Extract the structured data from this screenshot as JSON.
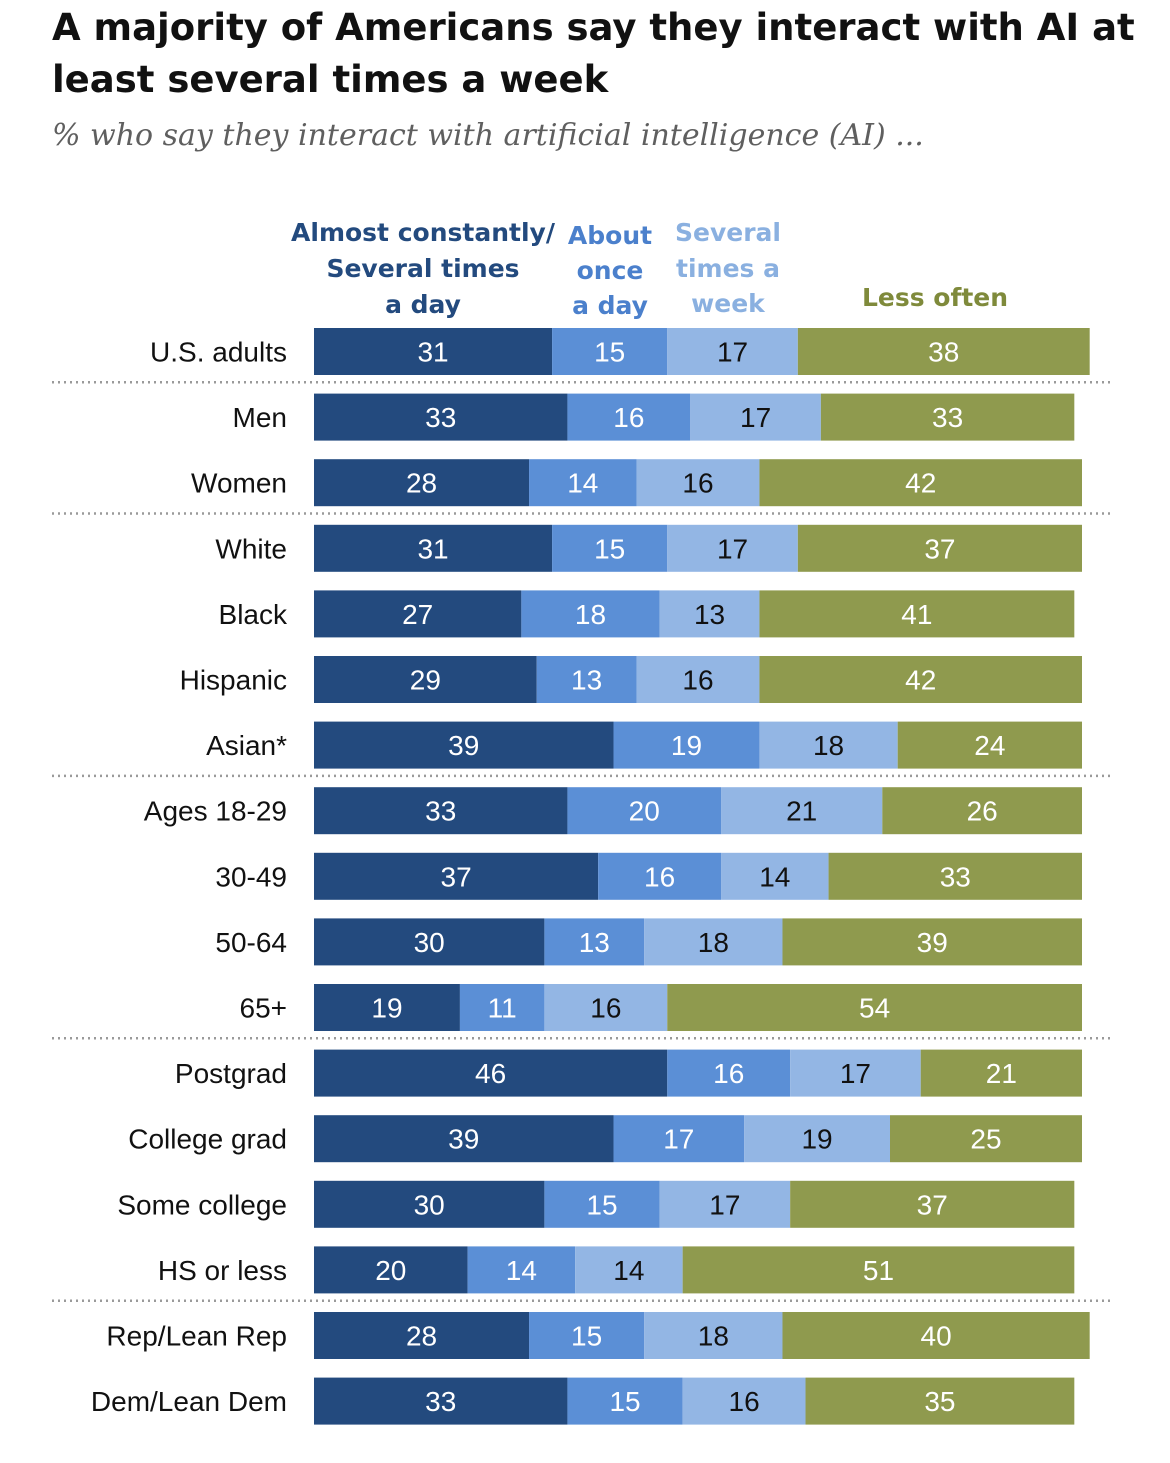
{
  "title": "A majority of Americans say they interact with AI at least several times a week",
  "subtitle": "% who say they interact with artificial intelligence (AI) ...",
  "colors": {
    "constant": "#234a7e",
    "daily": "#5b8fd6",
    "weekly": "#93b6e4",
    "less": "#8f9a4e",
    "legend_constant": "#234a7e",
    "legend_daily": "#4b80cc",
    "legend_weekly": "#8ab0e0",
    "legend_less": "#7f8a3b"
  },
  "chart_data": {
    "type": "bar",
    "orientation": "horizontal-stacked",
    "title": "A majority of Americans say they interact with AI at least several times a week",
    "subtitle": "% who say they interact with artificial intelligence (AI) ...",
    "xlabel": "",
    "ylabel": "",
    "xlim": [
      0,
      100
    ],
    "grid": false,
    "legend_position": "top",
    "categories": [
      "U.S. adults",
      "Men",
      "Women",
      "White",
      "Black",
      "Hispanic",
      "Asian*",
      "Ages 18-29",
      "30-49",
      "50-64",
      "65+",
      "Postgrad",
      "College grad",
      "Some college",
      "HS or less",
      "Rep/Lean Rep",
      "Dem/Lean Dem"
    ],
    "group_breaks_after": [
      0,
      2,
      6,
      10,
      14
    ],
    "series": [
      {
        "name": "Almost constantly/ Several times a day",
        "legend_lines": [
          "Almost constantly/",
          "Several times",
          "a day"
        ],
        "color_key": "constant",
        "values": [
          31,
          33,
          28,
          31,
          27,
          29,
          39,
          33,
          37,
          30,
          19,
          46,
          39,
          30,
          20,
          28,
          33
        ]
      },
      {
        "name": "About once a day",
        "legend_lines": [
          "About",
          "once",
          "a day"
        ],
        "color_key": "daily",
        "values": [
          15,
          16,
          14,
          15,
          18,
          13,
          19,
          20,
          16,
          13,
          11,
          16,
          17,
          15,
          14,
          15,
          15
        ]
      },
      {
        "name": "Several times a week",
        "legend_lines": [
          "Several",
          "times a",
          "week"
        ],
        "color_key": "weekly",
        "values": [
          17,
          17,
          16,
          17,
          13,
          16,
          18,
          21,
          14,
          18,
          16,
          17,
          19,
          17,
          14,
          18,
          16
        ]
      },
      {
        "name": "Less often",
        "legend_lines": [
          "Less often"
        ],
        "color_key": "less",
        "values": [
          38,
          33,
          42,
          37,
          41,
          42,
          24,
          26,
          33,
          39,
          54,
          21,
          25,
          37,
          51,
          40,
          35
        ]
      }
    ]
  }
}
